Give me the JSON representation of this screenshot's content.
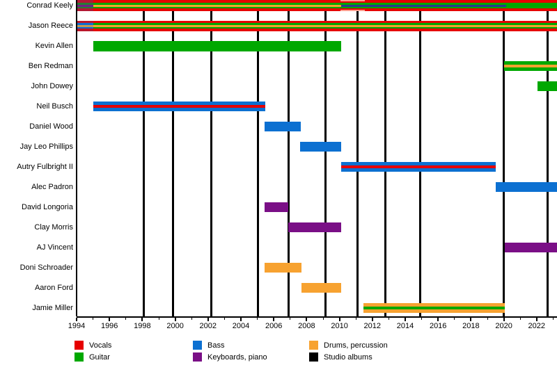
{
  "chart_data": {
    "type": "timeline",
    "description": "Band members timeline (gantt-style) with instrument color stripes per member and vertical black lines marking studio albums",
    "x_axis": {
      "year_start": 1994,
      "year_end": 2023.35,
      "major_tick_years": [
        1994,
        1996,
        1998,
        2000,
        2002,
        2004,
        2006,
        2008,
        2010,
        2012,
        2014,
        2016,
        2018,
        2020,
        2022
      ],
      "minor_tick_step": 1
    },
    "colors": {
      "vocals": "#E60000",
      "guitar": "#00A800",
      "bass": "#0C70D1",
      "keyboards": "#7A0F86",
      "drums": "#F7A230",
      "albums": "#000000",
      "dark_mid_stripe": "#2B3990",
      "pink_highlight": "#FF9E8F",
      "start_tint_purple": "rgba(100,60,130,0.40)",
      "start_tint_blue": "rgba(12,112,209,0.45)"
    },
    "album_years": [
      1998.1,
      1999.85,
      2002.2,
      2005.05,
      2006.9,
      2009.15,
      2011.1,
      2012.8,
      2014.9,
      2020.0,
      2022.65
    ],
    "members": [
      {
        "name": "Conrad Keely",
        "instruments": [
          "Vocals",
          "Guitar",
          "Drums, percussion",
          "Keyboards, piano"
        ],
        "segments": [
          {
            "start": 1994.05,
            "end": 1995.0,
            "stripes": [
              [
                "#E60000",
                4
              ],
              [
                "#00A800",
                2.5
              ],
              [
                "#7A0F86",
                3
              ],
              [
                "#00A800",
                2.5
              ],
              [
                "#E60000",
                4
              ]
            ],
            "tint": "rgba(100,60,130,0.40)"
          },
          {
            "start": 1995.0,
            "end": 2010.1,
            "stripes": [
              [
                "#E60000",
                4
              ],
              [
                "#00A800",
                2.5
              ],
              [
                "#F7A230",
                3
              ],
              [
                "#00A800",
                2.5
              ],
              [
                "#E60000",
                4
              ]
            ]
          },
          {
            "start": 2010.1,
            "end": 2020.15,
            "stripes": [
              [
                "#E60000",
                4
              ],
              [
                "#00A800",
                2.5
              ],
              [
                "#2B3990",
                3
              ],
              [
                "#00A800",
                2.5
              ],
              [
                "#E60000",
                4
              ]
            ]
          },
          {
            "start": 2020.15,
            "end": 2023.35,
            "stripes": [
              [
                "#E60000",
                4
              ],
              [
                "#00A800",
                8
              ],
              [
                "#E60000",
                4
              ]
            ]
          }
        ],
        "overlays": [
          {
            "start": 2010.05,
            "end": 2011.55,
            "type": "edge-highlight",
            "color": "#FF9E8F"
          }
        ]
      },
      {
        "name": "Jason Reece",
        "instruments": [
          "Vocals",
          "Guitar",
          "Drums, percussion",
          "Bass"
        ],
        "segments": [
          {
            "start": 1994.05,
            "end": 1995.0,
            "stripes": [
              [
                "#E60000",
                3.5
              ],
              [
                "#0C70D1",
                2.5
              ],
              [
                "#F7A230",
                3
              ],
              [
                "#0C70D1",
                2.5
              ],
              [
                "#E60000",
                3.5
              ]
            ],
            "tint": "rgba(12,112,209,0.20)"
          },
          {
            "start": 1995.0,
            "end": 2023.35,
            "stripes": [
              [
                "#E60000",
                3.5
              ],
              [
                "#00A800",
                2.5
              ],
              [
                "#F7A230",
                3
              ],
              [
                "#00A800",
                2.5
              ],
              [
                "#E60000",
                3.5
              ]
            ]
          }
        ],
        "overlays": []
      },
      {
        "name": "Kevin Allen",
        "instruments": [
          "Guitar"
        ],
        "segments": [
          {
            "start": 1995.0,
            "end": 2010.1,
            "stripes": [
              [
                "#00A800",
                15
              ]
            ]
          }
        ],
        "overlays": []
      },
      {
        "name": "Ben Redman",
        "instruments": [
          "Guitar",
          "Drums, percussion"
        ],
        "segments": [
          {
            "start": 2020.0,
            "end": 2023.35,
            "stripes": [
              [
                "#00A800",
                5
              ],
              [
                "#F7A230",
                4
              ],
              [
                "#00A800",
                5
              ]
            ]
          }
        ],
        "overlays": []
      },
      {
        "name": "John Dowey",
        "instruments": [
          "Guitar"
        ],
        "segments": [
          {
            "start": 2022.05,
            "end": 2023.35,
            "stripes": [
              [
                "#00A800",
                14
              ]
            ]
          }
        ],
        "overlays": []
      },
      {
        "name": "Neil Busch",
        "instruments": [
          "Bass",
          "Vocals"
        ],
        "segments": [
          {
            "start": 1995.0,
            "end": 2005.5,
            "stripes": [
              [
                "#0C70D1",
                5
              ],
              [
                "#E60000",
                3.5
              ],
              [
                "#0C70D1",
                5
              ]
            ]
          }
        ],
        "overlays": []
      },
      {
        "name": "Daniel Wood",
        "instruments": [
          "Bass"
        ],
        "segments": [
          {
            "start": 2005.45,
            "end": 2007.65,
            "stripes": [
              [
                "#0C70D1",
                14
              ]
            ]
          }
        ],
        "overlays": []
      },
      {
        "name": "Jay Leo Phillips",
        "instruments": [
          "Bass"
        ],
        "segments": [
          {
            "start": 2007.6,
            "end": 2010.1,
            "stripes": [
              [
                "#0C70D1",
                14
              ]
            ]
          }
        ],
        "overlays": []
      },
      {
        "name": "Autry Fulbright II",
        "instruments": [
          "Bass",
          "Vocals"
        ],
        "segments": [
          {
            "start": 2010.1,
            "end": 2019.5,
            "stripes": [
              [
                "#0C70D1",
                5
              ],
              [
                "#E60000",
                3.5
              ],
              [
                "#0C70D1",
                5
              ]
            ]
          }
        ],
        "overlays": []
      },
      {
        "name": "Alec Padron",
        "instruments": [
          "Bass"
        ],
        "segments": [
          {
            "start": 2019.5,
            "end": 2023.35,
            "stripes": [
              [
                "#0C70D1",
                14
              ]
            ]
          }
        ],
        "overlays": []
      },
      {
        "name": "David Longoria",
        "instruments": [
          "Keyboards, piano"
        ],
        "segments": [
          {
            "start": 2005.45,
            "end": 2006.9,
            "stripes": [
              [
                "#7A0F86",
                14
              ]
            ]
          }
        ],
        "overlays": []
      },
      {
        "name": "Clay Morris",
        "instruments": [
          "Keyboards, piano"
        ],
        "segments": [
          {
            "start": 2006.9,
            "end": 2010.1,
            "stripes": [
              [
                "#7A0F86",
                14
              ]
            ]
          }
        ],
        "overlays": []
      },
      {
        "name": "AJ Vincent",
        "instruments": [
          "Keyboards, piano"
        ],
        "segments": [
          {
            "start": 2020.05,
            "end": 2023.35,
            "stripes": [
              [
                "#7A0F86",
                14
              ]
            ]
          }
        ],
        "overlays": []
      },
      {
        "name": "Doni Schroader",
        "instruments": [
          "Drums, percussion"
        ],
        "segments": [
          {
            "start": 2005.45,
            "end": 2007.7,
            "stripes": [
              [
                "#F7A230",
                14
              ]
            ]
          }
        ],
        "overlays": []
      },
      {
        "name": "Aaron Ford",
        "instruments": [
          "Drums, percussion"
        ],
        "segments": [
          {
            "start": 2007.7,
            "end": 2010.1,
            "stripes": [
              [
                "#F7A230",
                14
              ]
            ]
          }
        ],
        "overlays": []
      },
      {
        "name": "Jamie Miller",
        "instruments": [
          "Drums, percussion",
          "Guitar"
        ],
        "segments": [
          {
            "start": 2011.45,
            "end": 2020.05,
            "stripes": [
              [
                "#F7A230",
                5
              ],
              [
                "#00A800",
                4
              ],
              [
                "#F7A230",
                5
              ]
            ]
          }
        ],
        "overlays": []
      }
    ],
    "legend": [
      {
        "label": "Vocals",
        "color": "#E60000"
      },
      {
        "label": "Guitar",
        "color": "#00A800"
      },
      {
        "label": "Bass",
        "color": "#0C70D1"
      },
      {
        "label": "Keyboards, piano",
        "color": "#7A0F86"
      },
      {
        "label": "Drums, percussion",
        "color": "#F7A230"
      },
      {
        "label": "Studio albums",
        "color": "#000000"
      }
    ]
  }
}
